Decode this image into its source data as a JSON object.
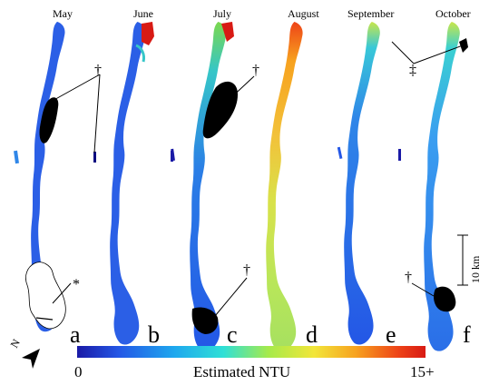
{
  "figure": {
    "panels": [
      {
        "month": "May",
        "letter": "a"
      },
      {
        "month": "June",
        "letter": "b"
      },
      {
        "month": "July",
        "letter": "c"
      },
      {
        "month": "August",
        "letter": "d"
      },
      {
        "month": "September",
        "letter": "e"
      },
      {
        "month": "October",
        "letter": "f"
      }
    ],
    "markers": {
      "dagger": "†",
      "double_dagger": "‡",
      "asterisk": "*"
    },
    "scale_bar": {
      "label": "10 km"
    },
    "north_arrow": {
      "label": "N"
    },
    "colorbar": {
      "min_label": "0",
      "max_label": "15+",
      "title": "Estimated NTU",
      "colors": [
        "#1a1aa6",
        "#2457e6",
        "#1ea8ee",
        "#2fe0d6",
        "#a6ea4a",
        "#f2e63a",
        "#f7a21f",
        "#ee4417",
        "#d81a14"
      ]
    }
  }
}
